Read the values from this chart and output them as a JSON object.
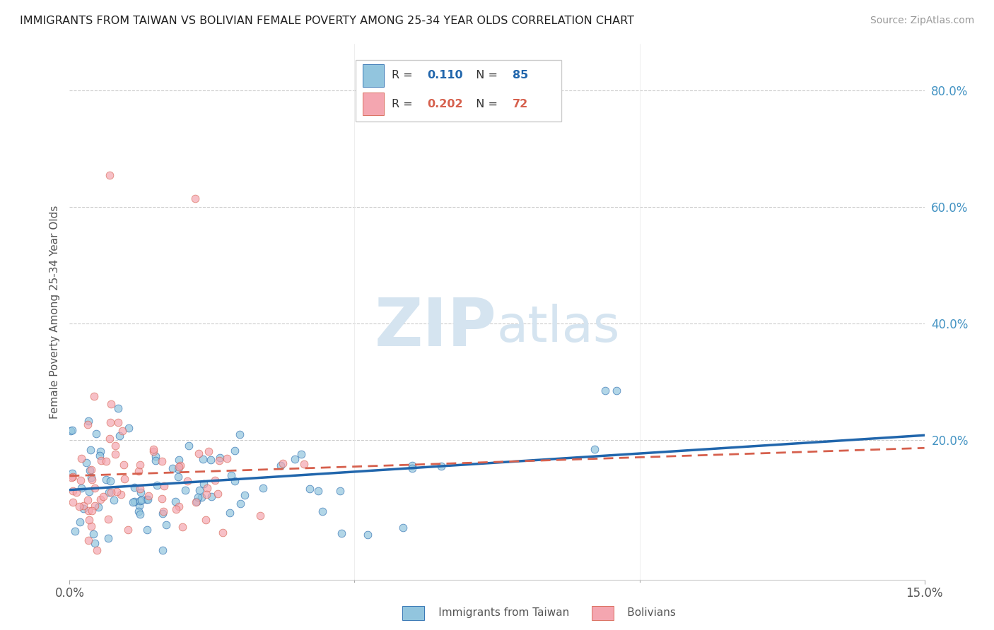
{
  "title": "IMMIGRANTS FROM TAIWAN VS BOLIVIAN FEMALE POVERTY AMONG 25-34 YEAR OLDS CORRELATION CHART",
  "source": "Source: ZipAtlas.com",
  "ylabel": "Female Poverty Among 25-34 Year Olds",
  "xmin": 0.0,
  "xmax": 0.15,
  "ymin": -0.04,
  "ymax": 0.88,
  "ytick_vals": [
    0.2,
    0.4,
    0.6,
    0.8
  ],
  "ytick_labels": [
    "20.0%",
    "40.0%",
    "60.0%",
    "80.0%"
  ],
  "xtick_vals": [
    0.0,
    0.15
  ],
  "xtick_labels": [
    "0.0%",
    "15.0%"
  ],
  "r_taiwan": 0.11,
  "n_taiwan": 85,
  "r_bolivian": 0.202,
  "n_bolivian": 72,
  "color_taiwan": "#92c5de",
  "color_bolivian": "#f4a6b0",
  "color_taiwan_line": "#2166ac",
  "color_bolivian_line": "#d6604d",
  "color_ytick": "#4393c3",
  "watermark_color": "#d5e4f0"
}
